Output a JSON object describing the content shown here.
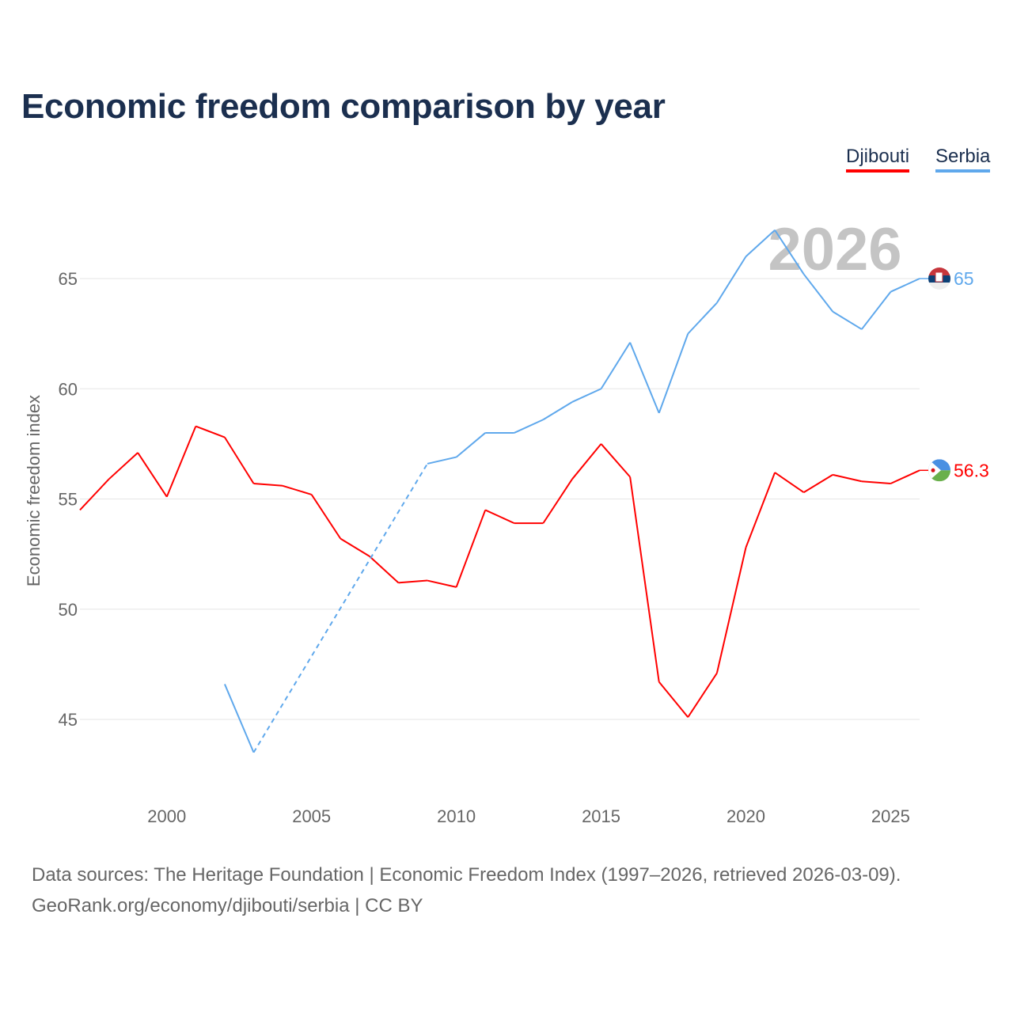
{
  "title": "Economic freedom comparison by year",
  "legend": {
    "djibouti": "Djibouti",
    "serbia": "Serbia"
  },
  "watermark_year": "2026",
  "footer": {
    "line1": "Data sources: The Heritage Foundation | Economic Freedom Index (1997–2026, retrieved 2026-03-09).",
    "line2": "GeoRank.org/economy/djibouti/serbia | CC BY"
  },
  "chart_data": {
    "type": "line",
    "title": "Economic freedom comparison by year",
    "xlabel": "",
    "ylabel": "Economic freedom index",
    "xlim": [
      1997,
      2026
    ],
    "ylim": [
      42,
      69
    ],
    "xticks": [
      2000,
      2005,
      2010,
      2015,
      2020,
      2025
    ],
    "yticks": [
      45,
      50,
      55,
      60,
      65
    ],
    "grid": true,
    "legend_position": "top-right",
    "x": [
      1997,
      1998,
      1999,
      2000,
      2001,
      2002,
      2003,
      2004,
      2005,
      2006,
      2007,
      2008,
      2009,
      2010,
      2011,
      2012,
      2013,
      2014,
      2015,
      2016,
      2017,
      2018,
      2019,
      2020,
      2021,
      2022,
      2023,
      2024,
      2025,
      2026
    ],
    "series": [
      {
        "name": "Djibouti",
        "color": "#ff0000",
        "end_label": "56.3",
        "values": [
          54.5,
          55.9,
          57.1,
          55.1,
          58.3,
          57.8,
          55.7,
          55.6,
          55.2,
          53.2,
          52.4,
          51.2,
          51.3,
          51.0,
          54.5,
          53.9,
          53.9,
          55.9,
          57.5,
          56.0,
          46.7,
          45.1,
          47.1,
          52.8,
          56.2,
          55.3,
          56.1,
          55.8,
          55.7,
          56.3
        ]
      },
      {
        "name": "Serbia",
        "color": "#5fa8ec",
        "end_label": "65",
        "values": [
          null,
          null,
          null,
          null,
          null,
          46.6,
          43.5,
          null,
          null,
          null,
          null,
          null,
          56.6,
          56.9,
          58.0,
          58.0,
          58.6,
          59.4,
          60.0,
          62.1,
          58.9,
          62.5,
          63.9,
          66.0,
          67.2,
          65.2,
          63.5,
          62.7,
          64.4,
          65.0
        ]
      }
    ]
  }
}
